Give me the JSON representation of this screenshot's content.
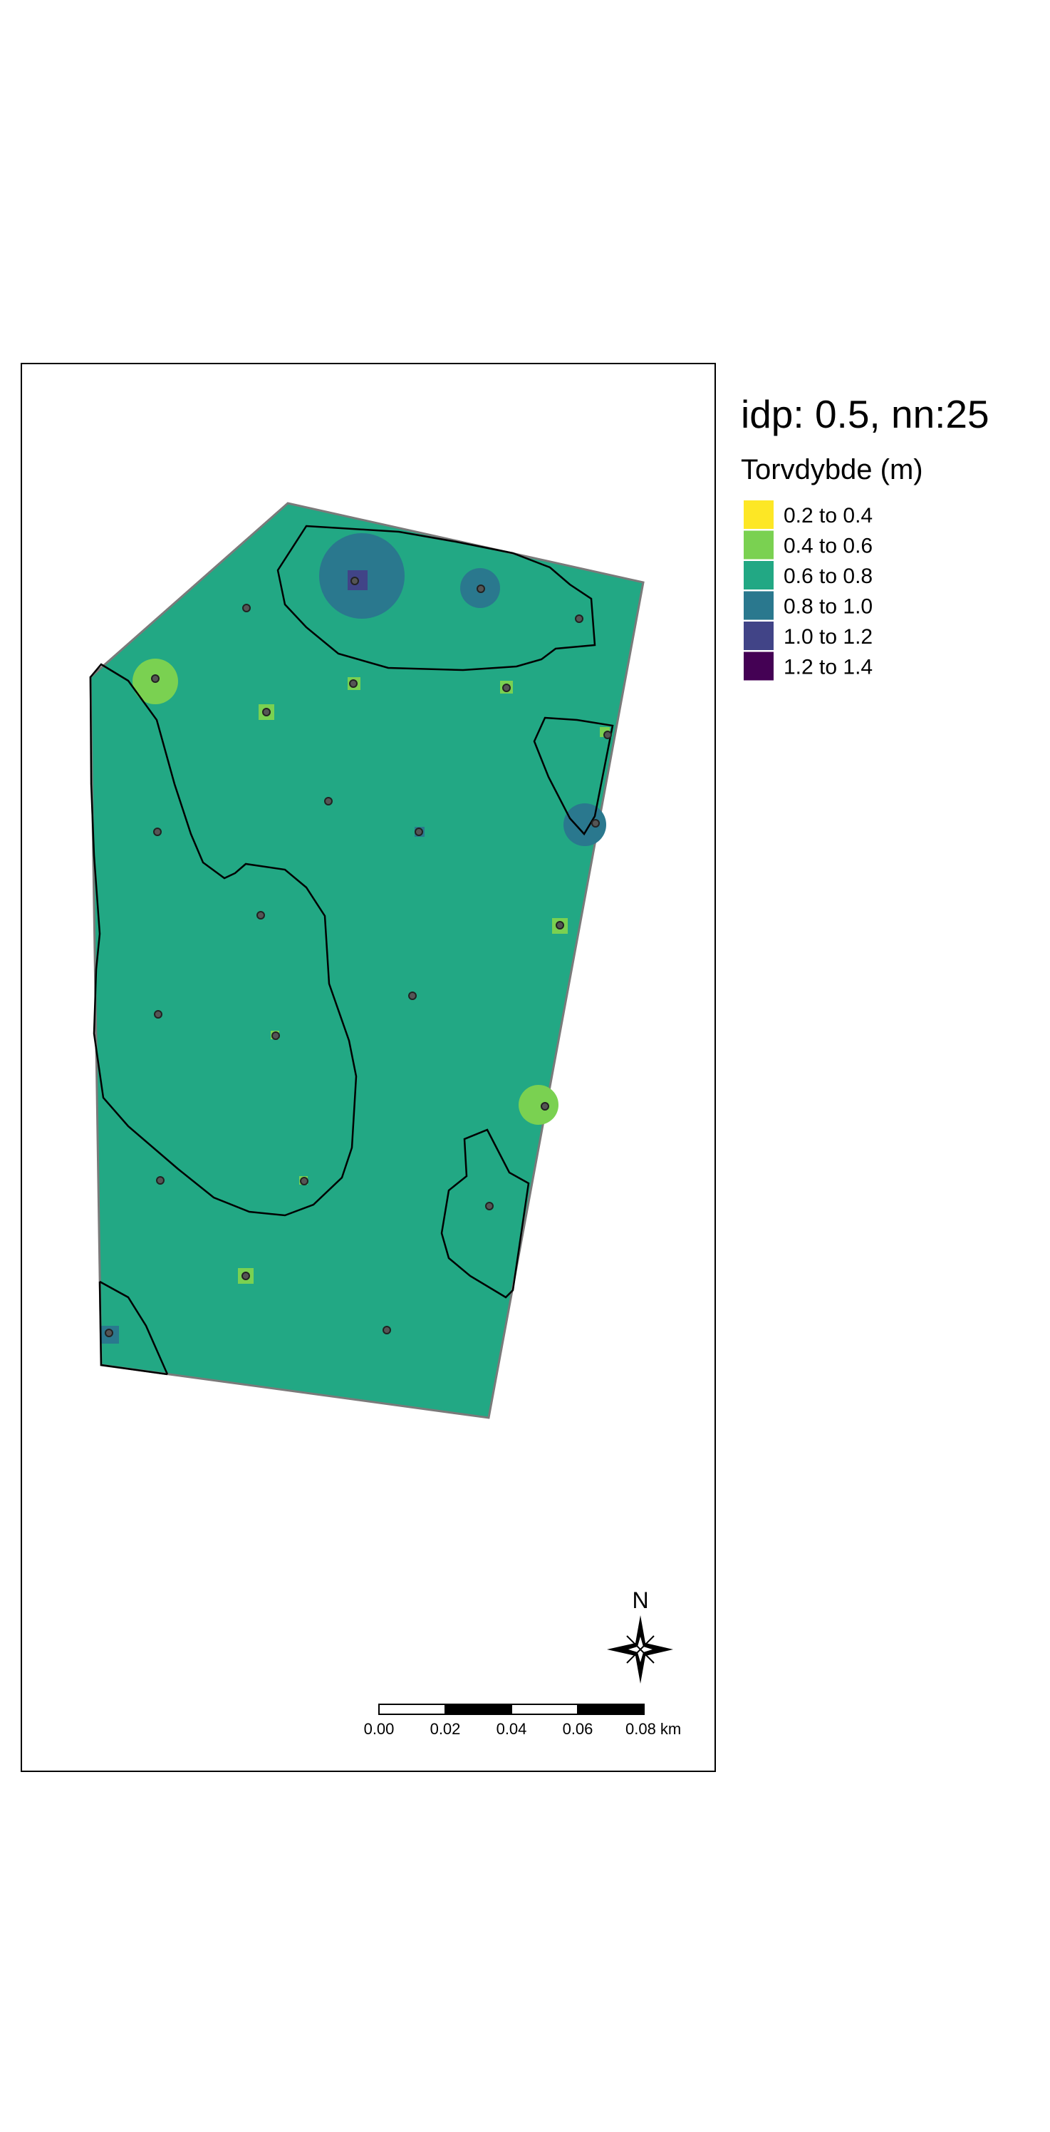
{
  "legend": {
    "title": "idp: 0.5, nn:25",
    "subtitle": "Torvdybde (m)",
    "items": [
      {
        "label": "0.2 to 0.4",
        "color": "#fde725"
      },
      {
        "label": "0.4 to 0.6",
        "color": "#7ad151"
      },
      {
        "label": "0.6 to 0.8",
        "color": "#22a884"
      },
      {
        "label": "0.8 to 1.0",
        "color": "#2a788e"
      },
      {
        "label": "1.0 to 1.2",
        "color": "#414487"
      },
      {
        "label": "1.2 to 1.4",
        "color": "#440154"
      }
    ]
  },
  "north_arrow": {
    "label": "N"
  },
  "scale_bar": {
    "ticks": [
      "0.00",
      "0.02",
      "0.04",
      "0.06",
      "0.08 km"
    ]
  },
  "colors": {
    "background_class": "#22a884",
    "contour": "#000000",
    "boundary": "#7a7a7a",
    "frame": "#000000"
  }
}
